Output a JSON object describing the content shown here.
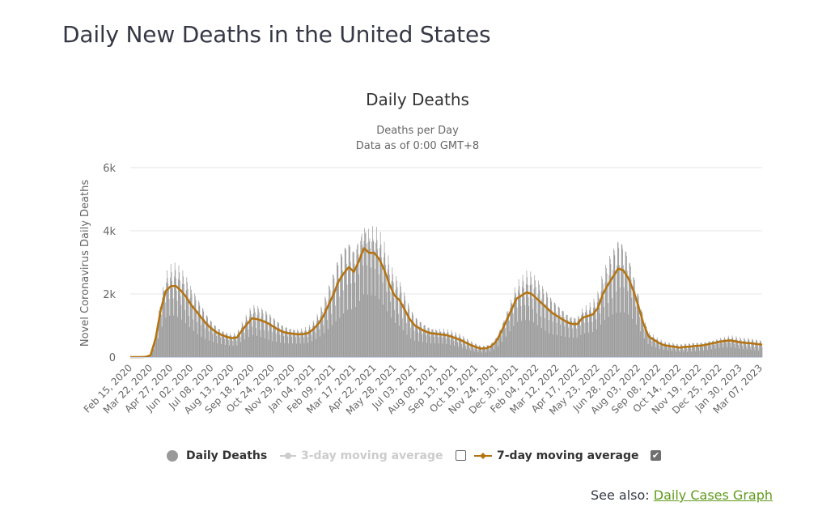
{
  "page": {
    "title": "Daily New Deaths in the United States",
    "see_also_prefix": "See also: ",
    "see_also_link": "Daily Cases Graph"
  },
  "legend": {
    "items": [
      {
        "label": "Daily Deaths",
        "icon": "circle-marker-icon",
        "color": "#999999",
        "active": true
      },
      {
        "label": "3-day moving average",
        "icon": "line-circle-marker-icon",
        "color": "#cccccc",
        "active": false,
        "checkbox_checked": false
      },
      {
        "label": "7-day moving average",
        "icon": "line-diamond-marker-icon",
        "color": "#b5730f",
        "active": true,
        "checkbox_checked": true
      }
    ]
  },
  "colors": {
    "bars": "#999999",
    "avg7": "#b5730f",
    "grid": "#e6e6e6",
    "axis_text": "#666666",
    "title_text": "#333333"
  },
  "chart_data": {
    "type": "bar",
    "title": "Daily Deaths",
    "subtitle": [
      "Deaths per Day",
      "Data as of 0:00 GMT+8"
    ],
    "xlabel": "",
    "ylabel": "Novel Coronavirus Daily Deaths",
    "ylim": [
      0,
      6000
    ],
    "yticks": [
      0,
      2000,
      4000,
      6000
    ],
    "ytick_labels": [
      "0",
      "2k",
      "4k",
      "6k"
    ],
    "grid": true,
    "legend_position": "bottom",
    "x_start": "2020-02-15",
    "x_end": "2023-03-10",
    "xtick_labels": [
      "Feb 15, 2020",
      "Mar 22, 2020",
      "Apr 27, 2020",
      "Jun 02, 2020",
      "Jul 08, 2020",
      "Aug 13, 2020",
      "Sep 18, 2020",
      "Oct 24, 2020",
      "Nov 29, 2020",
      "Jan 04, 2021",
      "Feb 09, 2021",
      "Mar 17, 2021",
      "Apr 22, 2021",
      "May 28, 2021",
      "Jul 03, 2021",
      "Aug 08, 2021",
      "Sep 13, 2021",
      "Oct 19, 2021",
      "Nov 24, 2021",
      "Dec 30, 2021",
      "Feb 04, 2022",
      "Mar 12, 2022",
      "Apr 17, 2022",
      "May 23, 2022",
      "Jun 28, 2022",
      "Aug 03, 2022",
      "Sep 08, 2022",
      "Oct 14, 2022",
      "Nov 19, 2022",
      "Dec 25, 2022",
      "Jan 30, 2023",
      "Mar 07, 2023"
    ],
    "series": [
      {
        "name": "7-day moving average",
        "type": "line",
        "note": "approximate values read from chart, sampled every ~9 days starting Feb 15, 2020",
        "step_days": 9,
        "values": [
          0,
          0,
          0,
          5,
          60,
          600,
          1500,
          2100,
          2250,
          2250,
          2100,
          1900,
          1650,
          1450,
          1250,
          1050,
          900,
          780,
          700,
          640,
          600,
          620,
          850,
          1050,
          1230,
          1200,
          1150,
          1080,
          980,
          880,
          800,
          760,
          740,
          720,
          730,
          760,
          880,
          1050,
          1300,
          1650,
          2000,
          2400,
          2650,
          2850,
          2700,
          3050,
          3450,
          3300,
          3300,
          3100,
          2750,
          2300,
          1950,
          1800,
          1500,
          1200,
          1000,
          900,
          820,
          760,
          740,
          720,
          700,
          660,
          600,
          540,
          460,
          380,
          320,
          270,
          280,
          340,
          500,
          800,
          1150,
          1500,
          1850,
          1950,
          2050,
          2000,
          1850,
          1700,
          1550,
          1400,
          1300,
          1200,
          1100,
          1050,
          1050,
          1250,
          1300,
          1350,
          1550,
          2000,
          2300,
          2550,
          2800,
          2750,
          2500,
          2100,
          1600,
          1050,
          650,
          550,
          450,
          380,
          350,
          330,
          300,
          320,
          330,
          350,
          360,
          380,
          420,
          450,
          490,
          510,
          530,
          500,
          470,
          450,
          440,
          420,
          400,
          380,
          370,
          360,
          350,
          330,
          320,
          330,
          350,
          400,
          430,
          420,
          500,
          650,
          600,
          560,
          500,
          450,
          380,
          300,
          180
        ]
      },
      {
        "name": "Daily Deaths",
        "type": "bar",
        "note": "daily values follow the 7-day average with weekday reporting variation"
      }
    ]
  }
}
